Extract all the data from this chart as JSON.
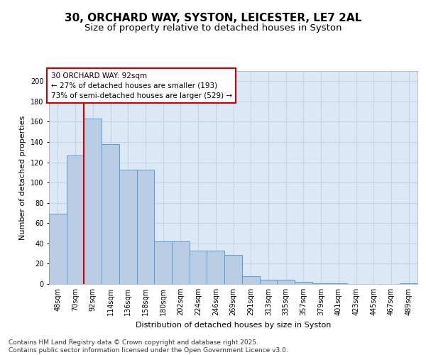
{
  "title_line1": "30, ORCHARD WAY, SYSTON, LEICESTER, LE7 2AL",
  "title_line2": "Size of property relative to detached houses in Syston",
  "xlabel": "Distribution of detached houses by size in Syston",
  "ylabel": "Number of detached properties",
  "categories": [
    "48sqm",
    "70sqm",
    "92sqm",
    "114sqm",
    "136sqm",
    "158sqm",
    "180sqm",
    "202sqm",
    "224sqm",
    "246sqm",
    "269sqm",
    "291sqm",
    "313sqm",
    "335sqm",
    "357sqm",
    "379sqm",
    "401sqm",
    "423sqm",
    "445sqm",
    "467sqm",
    "489sqm"
  ],
  "values": [
    69,
    127,
    163,
    138,
    113,
    113,
    42,
    42,
    33,
    33,
    29,
    8,
    4,
    4,
    2,
    1,
    1,
    0,
    0,
    0,
    1
  ],
  "bar_color": "#b8cce4",
  "bar_edgecolor": "#5b9bd5",
  "grid_color": "#c0d4e8",
  "background_color": "#dce8f5",
  "annotation_box_color": "#cc0000",
  "redline_x": 2,
  "ylim": [
    0,
    210
  ],
  "yticks": [
    0,
    20,
    40,
    60,
    80,
    100,
    120,
    140,
    160,
    180,
    200
  ],
  "footer_text": "Contains HM Land Registry data © Crown copyright and database right 2025.\nContains public sector information licensed under the Open Government Licence v3.0.",
  "title_fontsize": 11,
  "subtitle_fontsize": 9.5,
  "axis_label_fontsize": 8,
  "tick_fontsize": 7,
  "annotation_fontsize": 7.5,
  "footer_fontsize": 6.5,
  "annotation_line1": "30 ORCHARD WAY: 92sqm",
  "annotation_line2": "← 27% of detached houses are smaller (193)",
  "annotation_line3": "73% of semi-detached houses are larger (529) →"
}
